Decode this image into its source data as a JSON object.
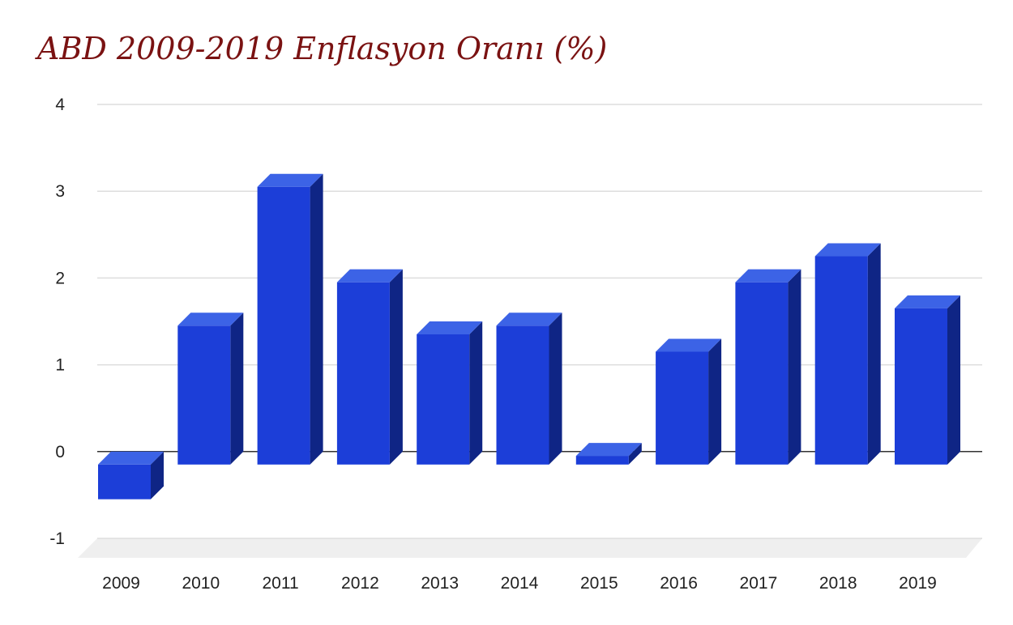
{
  "chart_data": {
    "type": "bar",
    "title": "ABD 2009-2019 Enflasyon Oranı (%)",
    "xlabel": "",
    "ylabel": "",
    "categories": [
      "2009",
      "2010",
      "2011",
      "2012",
      "2013",
      "2014",
      "2015",
      "2016",
      "2017",
      "2018",
      "2019"
    ],
    "values": [
      -0.4,
      1.6,
      3.2,
      2.1,
      1.5,
      1.6,
      0.1,
      1.3,
      2.1,
      2.4,
      1.8
    ],
    "ylim": [
      -1,
      4
    ],
    "yticks": [
      "-1",
      "0",
      "1",
      "2",
      "3",
      "4"
    ],
    "grid": true,
    "style": "3d-bar",
    "colors": {
      "bar_front": "#1c3ed8",
      "bar_top": "#3c63e6",
      "bar_side": "#0f2585",
      "title": "#7a1212",
      "grid": "#dddddd",
      "floor": "#efefef"
    }
  }
}
